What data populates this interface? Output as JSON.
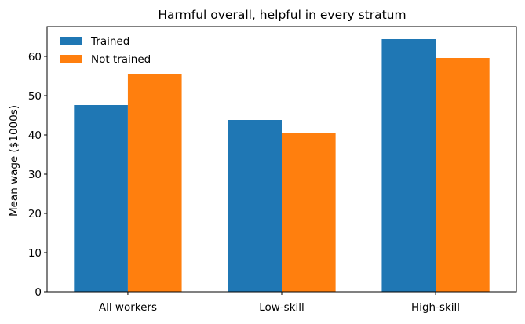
{
  "chart_data": {
    "type": "bar",
    "title": "Harmful overall, helpful in every stratum",
    "xlabel": "",
    "ylabel": "Mean wage ($1000s)",
    "categories": [
      "All workers",
      "Low-skill",
      "High-skill"
    ],
    "series": [
      {
        "name": "Trained",
        "color": "#1f77b4",
        "values": [
          47.6,
          43.8,
          64.4
        ]
      },
      {
        "name": "Not trained",
        "color": "#ff7f0e",
        "values": [
          55.6,
          40.6,
          59.6
        ]
      }
    ],
    "ylim": [
      0,
      67.6
    ],
    "yticks": [
      0,
      10,
      20,
      30,
      40,
      50,
      60
    ],
    "grid": false,
    "legend_position": "top-left"
  }
}
